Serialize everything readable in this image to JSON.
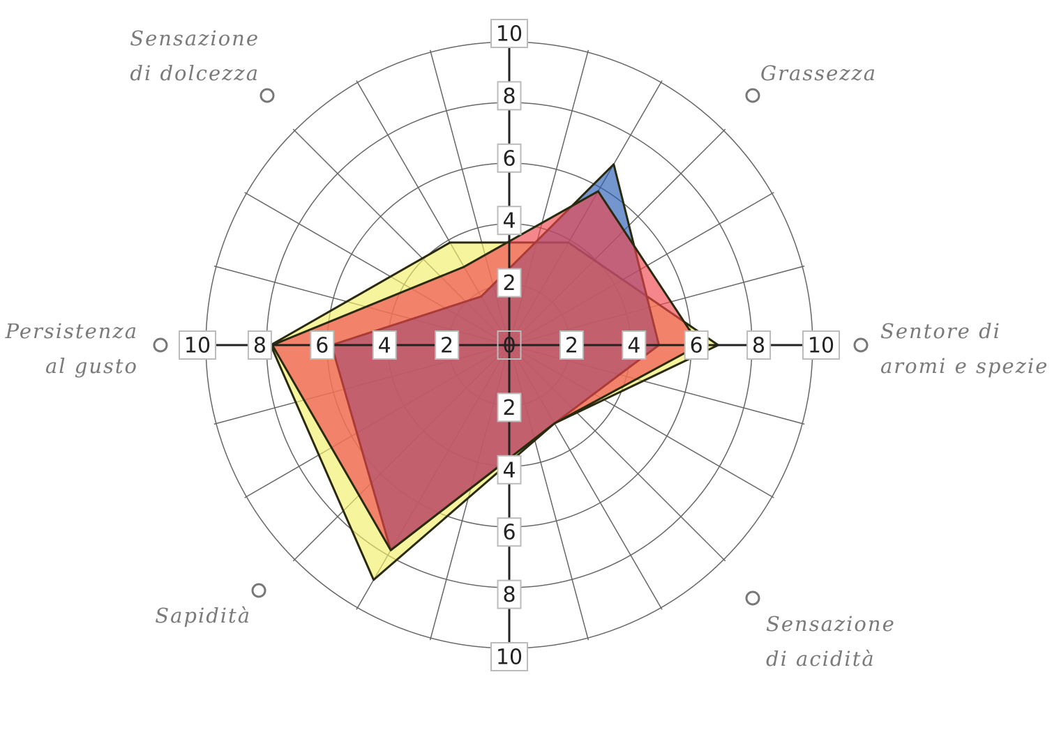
{
  "chart_data": {
    "type": "radar",
    "categories": [
      [
        "Grassezza"
      ],
      [
        "Sentore di",
        "aromi e spezie"
      ],
      [
        "Sensazione",
        "di acidità"
      ],
      [
        "Sapidità"
      ],
      [
        "Persistenza",
        "al gusto"
      ],
      [
        "Sensazione",
        "di dolcezza"
      ]
    ],
    "series": [
      {
        "color": "#f2ee6a",
        "values": [
          3.8,
          6.7,
          2.9,
          8.7,
          7.65,
          3.8
        ]
      },
      {
        "color": "#2a5db5",
        "values": [
          6.7,
          4.8,
          2.9,
          7.6,
          5.7,
          1.8
        ]
      },
      {
        "color": "#f0454d",
        "values": [
          5.7,
          6.1,
          2.9,
          7.6,
          7.6,
          2.9
        ]
      }
    ],
    "rlim": [
      0,
      10
    ],
    "rticks": [
      0,
      2,
      4,
      6,
      8,
      10
    ],
    "grid": true
  }
}
